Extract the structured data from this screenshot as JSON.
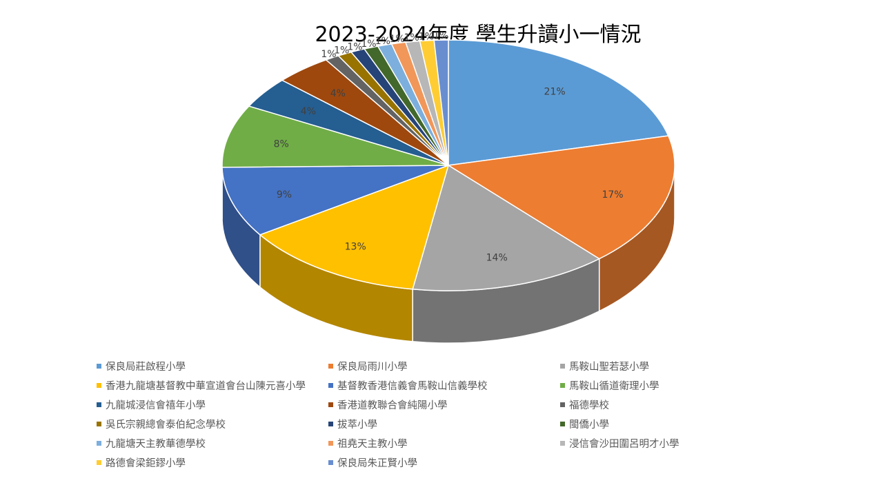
{
  "chart_data": {
    "type": "pie",
    "title": "2023-2024年度 學生升讀小一情況",
    "legend_position": "bottom",
    "three_d": true,
    "slices": [
      {
        "name": "保良局莊啟程小學",
        "value": 21,
        "label": "21%",
        "color": "#5B9BD5"
      },
      {
        "name": "保良局雨川小學",
        "value": 17,
        "label": "17%",
        "color": "#ED7D31"
      },
      {
        "name": "馬鞍山聖若瑟小學",
        "value": 14,
        "label": "14%",
        "color": "#A5A5A5"
      },
      {
        "name": "香港九龍塘基督教中華宣道會台山陳元喜小學",
        "value": 13,
        "label": "13%",
        "color": "#FFC000"
      },
      {
        "name": "基督教香港信義會馬鞍山信義學校",
        "value": 9,
        "label": "9%",
        "color": "#4472C4"
      },
      {
        "name": "馬鞍山循道衛理小學",
        "value": 8,
        "label": "8%",
        "color": "#70AD47"
      },
      {
        "name": "九龍城浸信會禧年小學",
        "value": 4,
        "label": "4%",
        "color": "#255E91"
      },
      {
        "name": "香港道教聯合會純陽小學",
        "value": 4,
        "label": "4%",
        "color": "#9E480E"
      },
      {
        "name": "福德學校",
        "value": 1,
        "label": "1%",
        "color": "#636363"
      },
      {
        "name": "吳氏宗親總會泰伯紀念學校",
        "value": 1,
        "label": "1%",
        "color": "#997300"
      },
      {
        "name": "拔萃小學",
        "value": 1,
        "label": "1%",
        "color": "#264478"
      },
      {
        "name": "閩僑小學",
        "value": 1,
        "label": "1%",
        "color": "#43682B"
      },
      {
        "name": "九龍塘天主教華德學校",
        "value": 1,
        "label": "1%",
        "color": "#7CAFDD"
      },
      {
        "name": "祖堯天主教小學",
        "value": 1,
        "label": "1%",
        "color": "#F1975A"
      },
      {
        "name": "浸信會沙田圍呂明才小學",
        "value": 1,
        "label": "1%",
        "color": "#B7B7B7"
      },
      {
        "name": "路德會梁鉅鏐小學",
        "value": 1,
        "label": "1%",
        "color": "#FFCD33"
      },
      {
        "name": "保良局朱正賢小學",
        "value": 1,
        "label": "1%",
        "color": "#698ED0"
      }
    ]
  }
}
